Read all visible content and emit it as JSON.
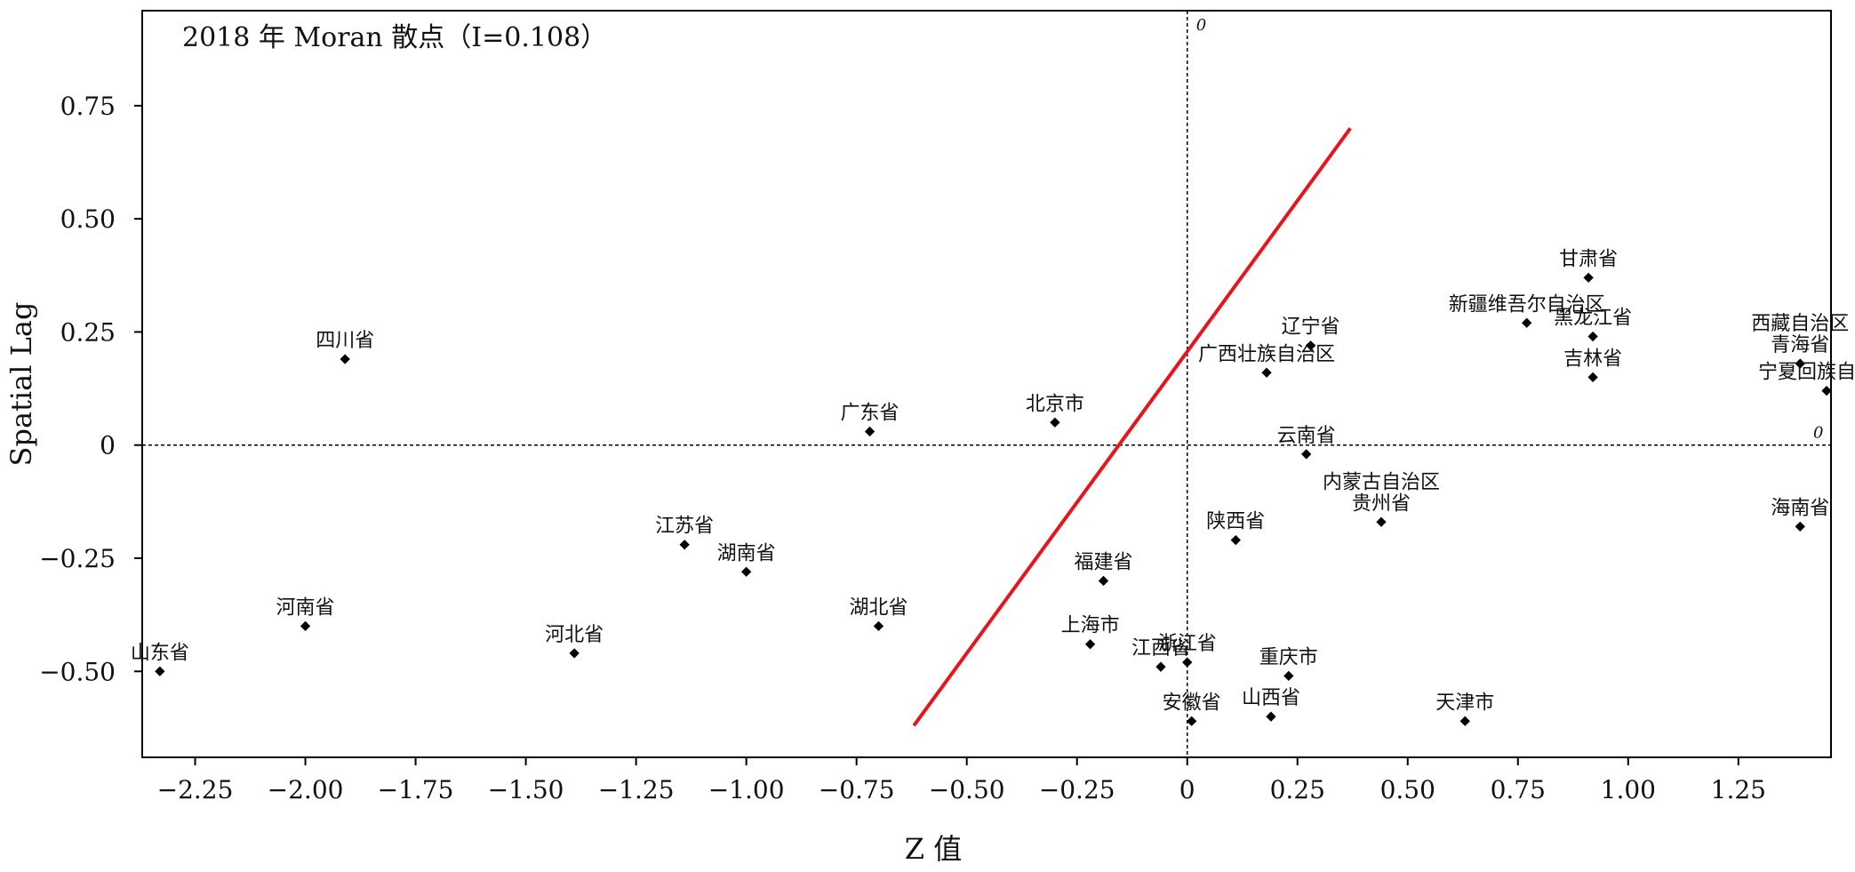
{
  "chart_data": {
    "type": "scatter",
    "title": "2018 年 Moran 散点（I=0.108）",
    "xlabel": "Z 值",
    "ylabel": "Spatial Lag",
    "xlim": [
      -2.37,
      1.46
    ],
    "ylim": [
      -0.69,
      0.96
    ],
    "x_ticks": [
      {
        "value": -2.25,
        "label": "−2.25"
      },
      {
        "value": -2.0,
        "label": "−2.00"
      },
      {
        "value": -1.75,
        "label": "−1.75"
      },
      {
        "value": -1.5,
        "label": "−1.50"
      },
      {
        "value": -1.25,
        "label": "−1.25"
      },
      {
        "value": -1.0,
        "label": "−1.00"
      },
      {
        "value": -0.75,
        "label": "−0.75"
      },
      {
        "value": -0.5,
        "label": "−0.50"
      },
      {
        "value": -0.25,
        "label": "−0.25"
      },
      {
        "value": 0,
        "label": "0"
      },
      {
        "value": 0.25,
        "label": "0.25"
      },
      {
        "value": 0.5,
        "label": "0.50"
      },
      {
        "value": 0.75,
        "label": "0.75"
      },
      {
        "value": 1.0,
        "label": "1.00"
      },
      {
        "value": 1.25,
        "label": "1.25"
      }
    ],
    "y_ticks": [
      {
        "value": 0.75,
        "label": "0.75"
      },
      {
        "value": 0.5,
        "label": "0.50"
      },
      {
        "value": 0.25,
        "label": "0.25"
      },
      {
        "value": 0,
        "label": "0"
      },
      {
        "value": -0.25,
        "label": "−0.25"
      },
      {
        "value": -0.5,
        "label": "−0.50"
      }
    ],
    "zero_line_label": "0",
    "regression_line": {
      "x": [
        -0.62,
        0.37
      ],
      "y": [
        -0.62,
        0.7
      ],
      "color": "#e8141c"
    },
    "point_color": "#000000",
    "points": [
      {
        "label": "山东省",
        "x": -2.33,
        "y": -0.5
      },
      {
        "label": "河南省",
        "x": -2.0,
        "y": -0.4
      },
      {
        "label": "四川省",
        "x": -1.91,
        "y": 0.19
      },
      {
        "label": "河北省",
        "x": -1.39,
        "y": -0.46
      },
      {
        "label": "江苏省",
        "x": -1.14,
        "y": -0.22
      },
      {
        "label": "湖南省",
        "x": -1.0,
        "y": -0.28
      },
      {
        "label": "广东省",
        "x": -0.72,
        "y": 0.03
      },
      {
        "label": "湖北省",
        "x": -0.7,
        "y": -0.4
      },
      {
        "label": "北京市",
        "x": -0.3,
        "y": 0.05
      },
      {
        "label": "上海市",
        "x": -0.22,
        "y": -0.44
      },
      {
        "label": "福建省",
        "x": -0.19,
        "y": -0.3
      },
      {
        "label": "江西省",
        "x": -0.06,
        "y": -0.49
      },
      {
        "label": "浙江省",
        "x": 0.0,
        "y": -0.48
      },
      {
        "label": "安徽省",
        "x": 0.01,
        "y": -0.61
      },
      {
        "label": "陕西省",
        "x": 0.11,
        "y": -0.21
      },
      {
        "label": "广西壮族自治区",
        "x": 0.18,
        "y": 0.16
      },
      {
        "label": "山西省",
        "x": 0.19,
        "y": -0.6
      },
      {
        "label": "重庆市",
        "x": 0.23,
        "y": -0.51
      },
      {
        "label": "云南省",
        "x": 0.27,
        "y": -0.02
      },
      {
        "label": "辽宁省",
        "x": 0.28,
        "y": 0.22
      },
      {
        "label": "贵州省",
        "x": 0.44,
        "y": -0.17
      },
      {
        "label": "内蒙古自治区",
        "x": 0.44,
        "y": -0.17
      },
      {
        "label": "天津市",
        "x": 0.63,
        "y": -0.61
      },
      {
        "label": "新疆维吾尔自治区",
        "x": 0.77,
        "y": 0.27
      },
      {
        "label": "甘肃省",
        "x": 0.91,
        "y": 0.37
      },
      {
        "label": "黑龙江省",
        "x": 0.92,
        "y": 0.24
      },
      {
        "label": "吉林省",
        "x": 0.92,
        "y": 0.15
      },
      {
        "label": "青海省",
        "x": 1.39,
        "y": 0.18
      },
      {
        "label": "西藏自治区",
        "x": 1.39,
        "y": 0.18
      },
      {
        "label": "海南省",
        "x": 1.39,
        "y": -0.18
      },
      {
        "label": "宁夏回族自治区",
        "x": 1.45,
        "y": 0.12
      }
    ]
  }
}
